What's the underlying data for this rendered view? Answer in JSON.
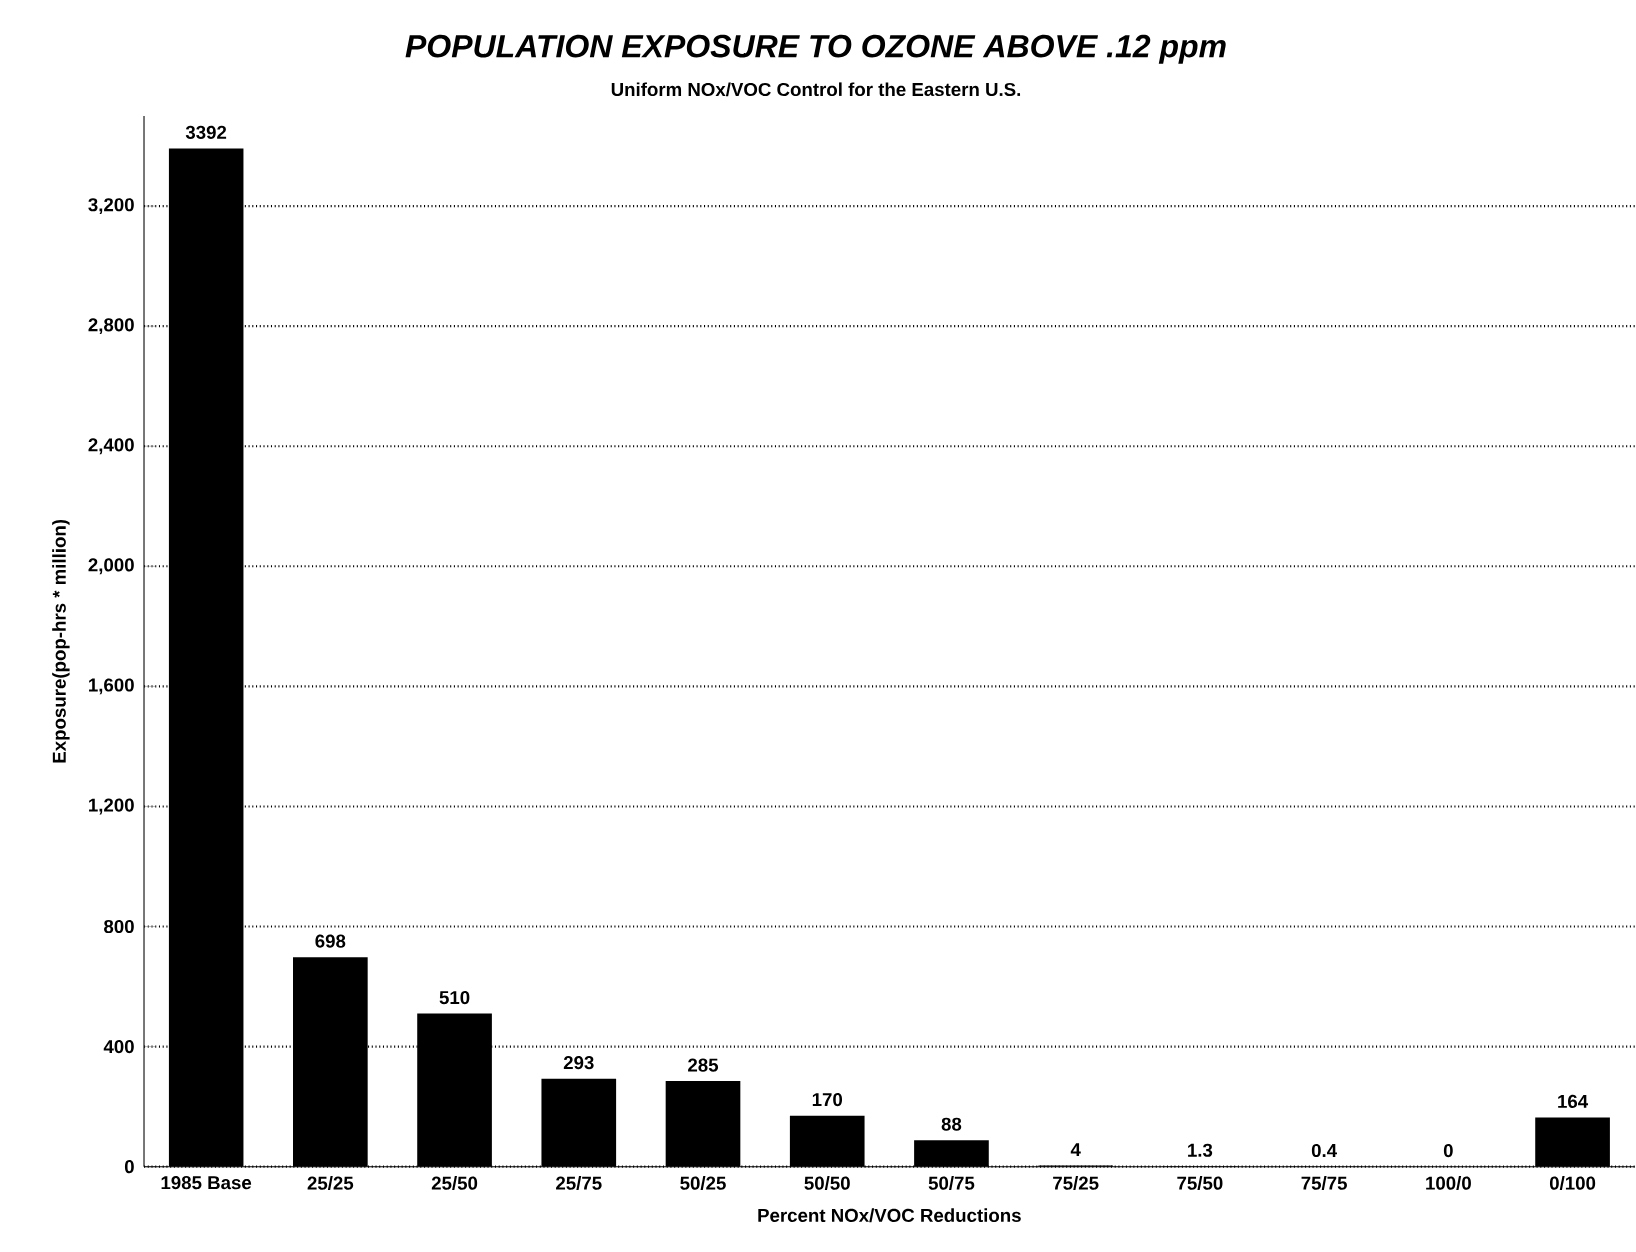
{
  "chart_data": {
    "type": "bar",
    "title": "POPULATION EXPOSURE TO OZONE ABOVE .12 ppm",
    "subtitle": "Uniform NOx/VOC Control for the Eastern U.S.",
    "xlabel": "Percent NOx/VOC Reductions",
    "ylabel": "Exposure(pop-hrs * million)",
    "categories": [
      "1985 Base",
      "25/25",
      "25/50",
      "25/75",
      "50/25",
      "50/50",
      "50/75",
      "75/25",
      "75/50",
      "75/75",
      "100/0",
      "0/100"
    ],
    "values": [
      3392,
      698,
      510,
      293,
      285,
      170,
      88,
      4,
      1.3,
      0.4,
      0,
      164
    ],
    "data_labels": true,
    "color": "#000000",
    "ylim": [
      0,
      3500
    ],
    "yticks": [
      {
        "value": 0,
        "label": "0"
      },
      {
        "value": 400,
        "label": "400"
      },
      {
        "value": 800,
        "label": "800"
      },
      {
        "value": 1200,
        "label": "1,200"
      },
      {
        "value": 1600,
        "label": "1,600"
      },
      {
        "value": 2000,
        "label": "2,000"
      },
      {
        "value": 2400,
        "label": "2,400"
      },
      {
        "value": 2800,
        "label": "2,800"
      },
      {
        "value": 3200,
        "label": "3,200"
      }
    ],
    "grid": "y"
  }
}
